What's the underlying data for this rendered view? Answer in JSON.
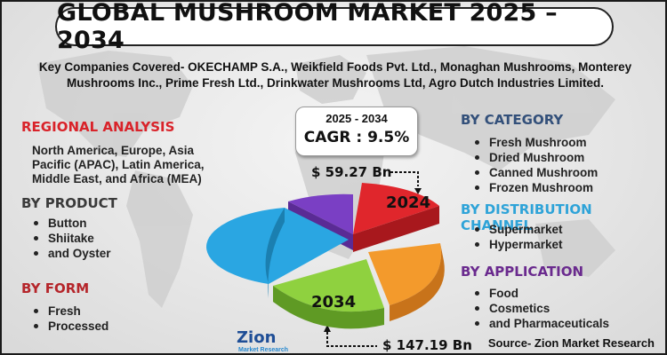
{
  "title": "GLOBAL MUSHROOM MARKET 2025 – 2034",
  "companies": "Key Companies Covered- OKECHAMP S.A., Weikfield Foods Pvt. Ltd., Monaghan Mushrooms, Monterey Mushrooms Inc., Prime Fresh Ltd., Drinkwater Mushrooms Ltd, Agro Dutch Industries Limited.",
  "regional": {
    "title": "REGIONAL ANALYSIS",
    "text": "North America, Europe, Asia Pacific (APAC), Latin America, Middle East, and Africa (MEA)",
    "color": "#d9232a"
  },
  "product": {
    "title": "BY PRODUCT",
    "items": [
      "Button",
      "Shiitake",
      "and Oyster"
    ],
    "color": "#3a3a3a"
  },
  "form": {
    "title": "BY FORM",
    "items": [
      "Fresh",
      "Processed"
    ],
    "color": "#b5252a"
  },
  "category": {
    "title": "BY CATEGORY",
    "items": [
      "Fresh Mushroom",
      "Dried Mushroom",
      "Canned Mushroom",
      "Frozen Mushroom"
    ],
    "color": "#33507a"
  },
  "distribution": {
    "title": "BY DISTRIBUTION CHANNEL",
    "items": [
      "Supermarket",
      "Hypermarket"
    ],
    "color": "#2ea3d8"
  },
  "application": {
    "title": "BY APPLICATION",
    "items": [
      "Food",
      "Cosmetics",
      "and Pharmaceuticals"
    ],
    "color": "#6a2a8e"
  },
  "cagr": {
    "years": "2025 - 2034",
    "label": "CAGR : 9.5%"
  },
  "value_2024": "$ 59.27 Bn",
  "value_2034": "$ 147.19 Bn",
  "year_start": "2024",
  "year_end": "2034",
  "logo": {
    "name": "Zion",
    "sub": "Market Research"
  },
  "source": "Source- Zion Market Research",
  "pie_colors": {
    "red": "#e0262c",
    "orange": "#f39a2c",
    "green": "#8fd13f",
    "blue": "#2aa6e2",
    "purple": "#7a3fc4"
  }
}
